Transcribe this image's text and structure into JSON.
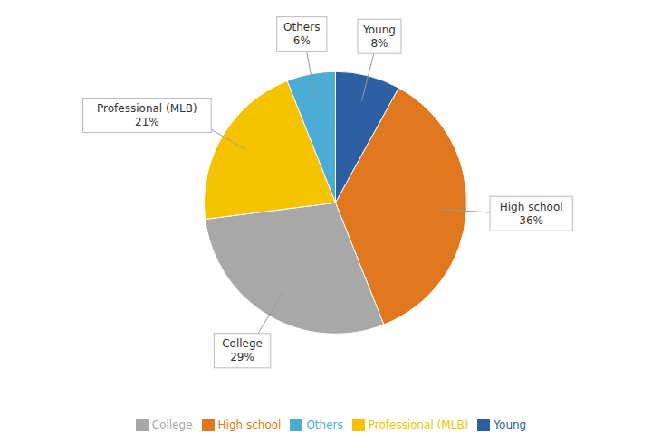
{
  "chart_data": {
    "type": "pie",
    "categories": [
      "Young",
      "High school",
      "College",
      "Professional (MLB)",
      "Others"
    ],
    "values": [
      8,
      36,
      29,
      21,
      6
    ],
    "value_labels": [
      "Young\n8%",
      "High school\n36%",
      "College\n29%",
      "Professional (MLB)\n21%",
      "Others\n6%"
    ],
    "colors": [
      "#2E5FA3",
      "#E07820",
      "#A8A8A8",
      "#F5C200",
      "#4BACD4"
    ],
    "data_labels": true,
    "legend": "bottom"
  }
}
